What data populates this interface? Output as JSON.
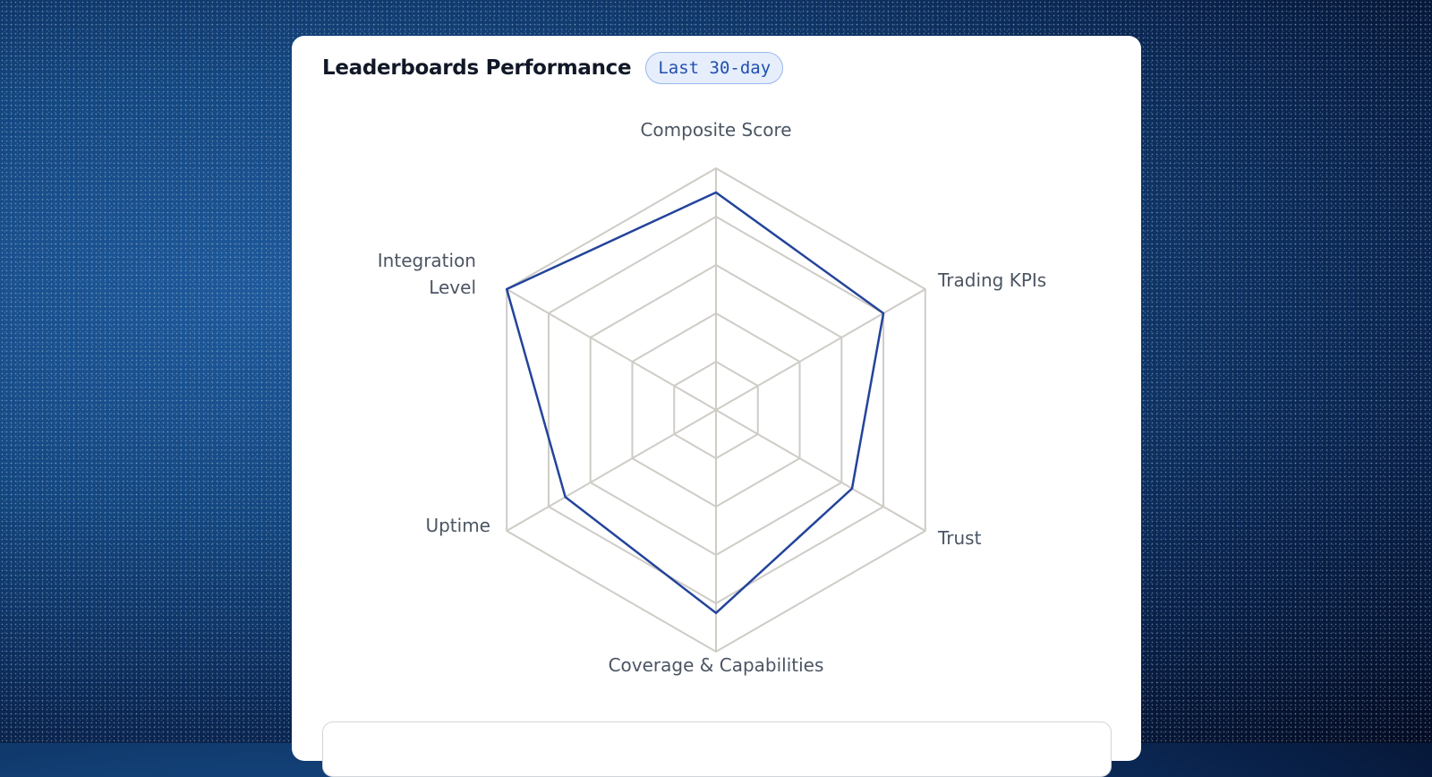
{
  "card": {
    "title": "Leaderboards Performance",
    "badge": "Last 30-day"
  },
  "colors": {
    "series": "#23449b",
    "grid": "#cfccc6"
  },
  "chart_data": {
    "type": "radar",
    "categories": [
      "Composite Score",
      "Trading KPIs",
      "Trust",
      "Coverage & Capabilities",
      "Uptime",
      "Integration Level"
    ],
    "category_lines": [
      [
        "Composite Score"
      ],
      [
        "Trading KPIs"
      ],
      [
        "Trust"
      ],
      [
        "Coverage & Capabilities"
      ],
      [
        "Uptime"
      ],
      [
        "Integration",
        "Level"
      ]
    ],
    "rings": [
      0.2,
      0.4,
      0.6,
      0.8,
      1.0
    ],
    "series": [
      {
        "values": [
          0.9,
          0.8,
          0.65,
          0.84,
          0.72,
          1.0
        ]
      }
    ],
    "range": [
      0,
      1
    ]
  }
}
